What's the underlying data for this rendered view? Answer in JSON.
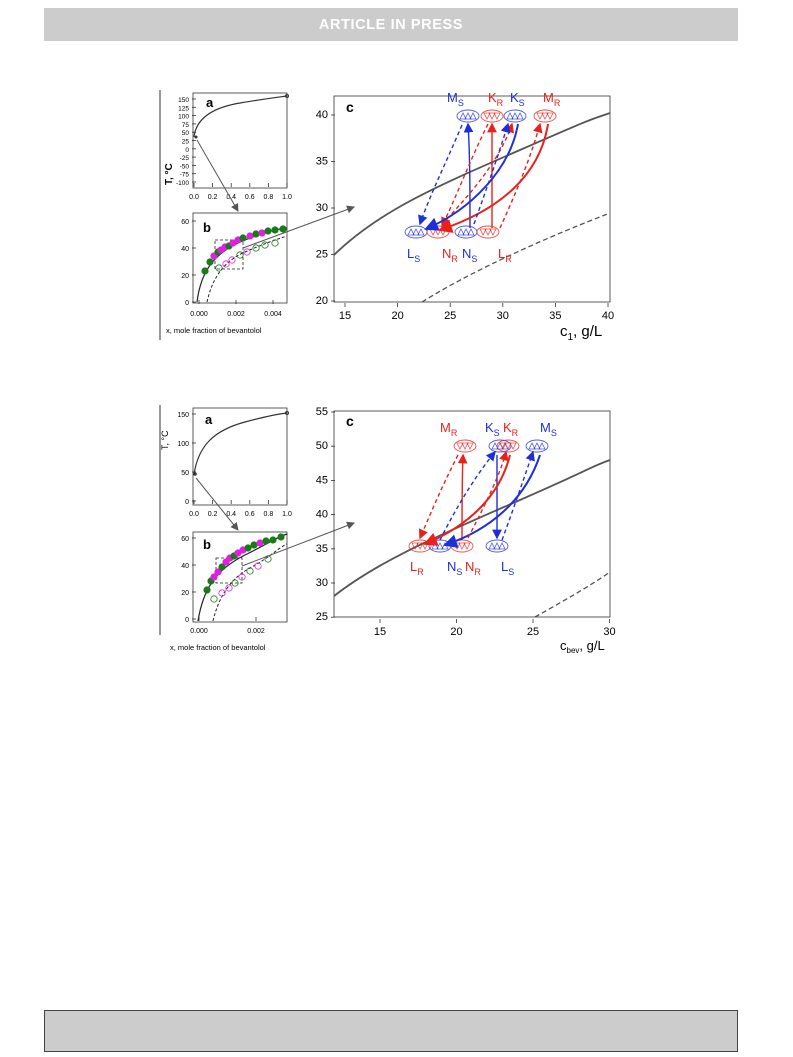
{
  "header": {
    "text": "ARTICLE  IN  PRESS"
  },
  "colors": {
    "red": "#e8221b",
    "blue": "#1f2fd8",
    "magenta": "#e020e0",
    "green": "#1a7a1a",
    "gray": "#4d4d4d",
    "bar": "#cccccc"
  },
  "figure1": {
    "panel_a": {
      "letter": "a",
      "ylabel": "T, °C",
      "yticks": [
        "150",
        "125",
        "100",
        "75",
        "50",
        "25",
        "0",
        "-25",
        "-50",
        "-75",
        "-100"
      ],
      "xticks": [
        "0.0",
        "0.2",
        "0.4",
        "0.6",
        "0.8",
        "1.0"
      ]
    },
    "panel_b": {
      "letter": "b",
      "yticks": [
        "60",
        "40",
        "20",
        "0"
      ],
      "xticks": [
        "0.000",
        "0.002",
        "0.004"
      ],
      "xlabel": "x, mole fraction of bevantolol"
    },
    "panel_c": {
      "letter": "c",
      "yticks": [
        "40",
        "35",
        "30",
        "25",
        "20"
      ],
      "xticks": [
        "15",
        "20",
        "25",
        "30",
        "35",
        "40"
      ],
      "xlabel_main": "c",
      "xlabel_sub": "1",
      "xlabel_rest": ", g/L"
    },
    "labels": [
      {
        "t": "M",
        "s": "S",
        "c": "blue"
      },
      {
        "t": "K",
        "s": "R",
        "c": "red"
      },
      {
        "t": "K",
        "s": "S",
        "c": "blue"
      },
      {
        "t": "M",
        "s": "R",
        "c": "red"
      },
      {
        "t": "L",
        "s": "S",
        "c": "blue"
      },
      {
        "t": "N",
        "s": "R",
        "c": "red"
      },
      {
        "t": "N",
        "s": "S",
        "c": "blue"
      },
      {
        "t": "L",
        "s": "R",
        "c": "red"
      }
    ]
  },
  "figure2": {
    "panel_a": {
      "letter": "a",
      "ylabel": "T, °C",
      "yticks": [
        "150",
        "100",
        "50",
        "0"
      ],
      "xticks": [
        "0.0",
        "0.2",
        "0.4",
        "0.6",
        "0.8",
        "1.0"
      ]
    },
    "panel_b": {
      "letter": "b",
      "yticks": [
        "60",
        "40",
        "20",
        "0"
      ],
      "xticks": [
        "0.000",
        "0.002"
      ],
      "xlabel": "x, mole fraction of bevantolol"
    },
    "panel_c": {
      "letter": "c",
      "yticks": [
        "55",
        "50",
        "45",
        "40",
        "35",
        "30",
        "25"
      ],
      "xticks": [
        "15",
        "20",
        "25",
        "30"
      ],
      "xlabel_main": "c",
      "xlabel_sub": "bev",
      "xlabel_rest": ", g/L"
    },
    "labels": [
      {
        "t": "M",
        "s": "R",
        "c": "red"
      },
      {
        "t": "K",
        "s": "S",
        "c": "blue"
      },
      {
        "t": "K",
        "s": "R",
        "c": "red"
      },
      {
        "t": "M",
        "s": "S",
        "c": "blue"
      },
      {
        "t": "L",
        "s": "R",
        "c": "red"
      },
      {
        "t": "N",
        "s": "S",
        "c": "blue"
      },
      {
        "t": "N",
        "s": "R",
        "c": "red"
      },
      {
        "t": "L",
        "s": "S",
        "c": "blue"
      }
    ]
  }
}
